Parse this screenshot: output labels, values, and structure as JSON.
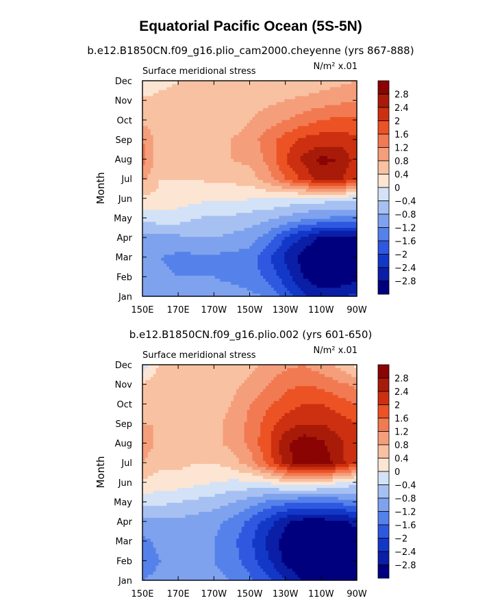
{
  "figure": {
    "title": "Equatorial Pacific Ocean (5S-5N)"
  },
  "colormap": {
    "levels": [
      -2.8,
      -2.4,
      -2,
      -1.6,
      -1.2,
      -0.8,
      -0.4,
      0,
      0.4,
      0.8,
      1.2,
      1.6,
      2,
      2.4,
      2.8
    ],
    "colors": [
      "#00007f",
      "#0a1ea6",
      "#1338c8",
      "#2f58e0",
      "#5582ea",
      "#7fa2ee",
      "#a7c0f2",
      "#d3e2f7",
      "#fde5d3",
      "#f8c1a1",
      "#f59e7b",
      "#f17a52",
      "#ec5324",
      "#cc3010",
      "#a81b08",
      "#8a0404"
    ]
  },
  "chart_data": [
    {
      "type": "heatmap",
      "subtitle": "b.e12.B1850CN.f09_g16.plio_cam2000.cheyenne (yrs 867-888)",
      "variable": "Surface meridional stress",
      "units": "N/m² x.01",
      "xlabel": "",
      "ylabel": "Month",
      "x_ticks": [
        "150E",
        "170E",
        "170W",
        "150W",
        "130W",
        "110W",
        "90W"
      ],
      "y_ticks": [
        "Jan",
        "Feb",
        "Mar",
        "Apr",
        "May",
        "Jun",
        "Jul",
        "Aug",
        "Sep",
        "Oct",
        "Nov",
        "Dec"
      ],
      "x": [
        150,
        160,
        170,
        180,
        190,
        200,
        210,
        220,
        230,
        240,
        250,
        260,
        270
      ],
      "y": [
        "Jan",
        "Feb",
        "Mar",
        "Apr",
        "May",
        "Jun",
        "Jul",
        "Aug",
        "Sep",
        "Oct",
        "Nov",
        "Dec"
      ],
      "z": [
        [
          -0.8,
          -0.9,
          -1.0,
          -1.0,
          -1.0,
          -1.0,
          -1.1,
          -1.2,
          -1.8,
          -2.3,
          -2.6,
          -2.5,
          -2.2
        ],
        [
          -1.0,
          -1.1,
          -1.2,
          -1.2,
          -1.2,
          -1.3,
          -1.4,
          -1.7,
          -2.2,
          -2.8,
          -3.1,
          -3.1,
          -3.0
        ],
        [
          -1.1,
          -1.2,
          -1.3,
          -1.3,
          -1.3,
          -1.3,
          -1.4,
          -1.9,
          -2.5,
          -3.0,
          -3.2,
          -3.2,
          -3.0
        ],
        [
          -0.9,
          -0.9,
          -0.9,
          -0.8,
          -0.8,
          -0.9,
          -1.0,
          -1.4,
          -2.0,
          -2.5,
          -2.9,
          -3.0,
          -2.9
        ],
        [
          -0.3,
          -0.2,
          -0.2,
          -0.4,
          -0.5,
          -0.5,
          -0.6,
          -0.7,
          -0.9,
          -1.1,
          -1.2,
          -1.3,
          -1.3
        ],
        [
          0.3,
          0.3,
          0.2,
          0.1,
          0.1,
          0.1,
          0.0,
          0.0,
          -0.1,
          -0.2,
          -0.2,
          -0.3,
          -0.3
        ],
        [
          0.9,
          0.4,
          0.4,
          0.4,
          0.5,
          0.5,
          0.6,
          1.0,
          1.6,
          2.1,
          2.6,
          2.5,
          2.0
        ],
        [
          1.4,
          0.5,
          0.5,
          0.6,
          0.7,
          0.8,
          0.9,
          1.3,
          2.0,
          2.5,
          2.9,
          2.8,
          2.2
        ],
        [
          1.2,
          0.6,
          0.5,
          0.6,
          0.7,
          0.8,
          1.0,
          1.4,
          1.8,
          2.1,
          2.2,
          2.2,
          2.1
        ],
        [
          0.7,
          0.5,
          0.5,
          0.4,
          0.4,
          0.6,
          0.8,
          1.0,
          1.2,
          1.4,
          1.6,
          1.7,
          1.7
        ],
        [
          0.5,
          0.5,
          0.5,
          0.4,
          0.4,
          0.5,
          0.6,
          0.7,
          0.8,
          0.9,
          1.0,
          1.1,
          1.2
        ],
        [
          0.0,
          0.3,
          0.4,
          0.4,
          0.4,
          0.5,
          0.5,
          0.5,
          0.5,
          0.5,
          0.6,
          0.7,
          0.8
        ]
      ]
    },
    {
      "type": "heatmap",
      "subtitle": "b.e12.B1850CN.f09_g16.plio.002 (yrs 601-650)",
      "variable": "Surface meridional stress",
      "units": "N/m² x.01",
      "xlabel": "",
      "ylabel": "Month",
      "x_ticks": [
        "150E",
        "170E",
        "170W",
        "150W",
        "130W",
        "110W",
        "90W"
      ],
      "y_ticks": [
        "Jan",
        "Feb",
        "Mar",
        "Apr",
        "May",
        "Jun",
        "Jul",
        "Aug",
        "Sep",
        "Oct",
        "Nov",
        "Dec"
      ],
      "x": [
        150,
        160,
        170,
        180,
        190,
        200,
        210,
        220,
        230,
        240,
        250,
        260,
        270
      ],
      "y": [
        "Jan",
        "Feb",
        "Mar",
        "Apr",
        "May",
        "Jun",
        "Jul",
        "Aug",
        "Sep",
        "Oct",
        "Nov",
        "Dec"
      ],
      "z": [
        [
          -1.2,
          -1.1,
          -1.0,
          -1.0,
          -1.1,
          -1.2,
          -1.5,
          -1.9,
          -2.4,
          -2.8,
          -2.9,
          -2.9,
          -2.8
        ],
        [
          -1.4,
          -1.2,
          -1.1,
          -1.1,
          -1.2,
          -1.4,
          -1.8,
          -2.3,
          -2.9,
          -3.2,
          -3.3,
          -3.2,
          -3.0
        ],
        [
          -1.3,
          -1.1,
          -1.0,
          -1.0,
          -1.2,
          -1.5,
          -1.9,
          -2.5,
          -3.0,
          -3.3,
          -3.3,
          -3.2,
          -3.0
        ],
        [
          -1.0,
          -0.9,
          -0.9,
          -1.0,
          -1.1,
          -1.3,
          -1.7,
          -2.2,
          -2.7,
          -3.0,
          -3.0,
          -2.9,
          -2.7
        ],
        [
          -0.2,
          -0.3,
          -0.4,
          -0.5,
          -0.6,
          -0.8,
          -1.0,
          -1.3,
          -1.5,
          -1.6,
          -1.6,
          -1.5,
          -1.3
        ],
        [
          0.3,
          0.2,
          0.2,
          0.1,
          0.0,
          -0.1,
          -0.1,
          0.0,
          0.2,
          0.3,
          0.2,
          0.0,
          -0.3
        ],
        [
          0.8,
          0.5,
          0.5,
          0.4,
          0.4,
          0.6,
          1.0,
          1.7,
          2.6,
          3.1,
          3.1,
          2.6,
          2.0
        ],
        [
          1.0,
          0.7,
          0.6,
          0.6,
          0.7,
          0.9,
          1.3,
          1.9,
          2.7,
          3.1,
          2.9,
          2.5,
          2.1
        ],
        [
          0.8,
          0.8,
          0.7,
          0.6,
          0.7,
          0.9,
          1.3,
          1.8,
          2.2,
          2.4,
          2.4,
          2.2,
          2.0
        ],
        [
          0.6,
          0.6,
          0.7,
          0.6,
          0.7,
          0.8,
          1.2,
          1.5,
          1.8,
          2.0,
          2.0,
          1.8,
          1.6
        ],
        [
          0.5,
          0.6,
          0.6,
          0.6,
          0.6,
          0.7,
          0.9,
          1.2,
          1.5,
          1.6,
          1.5,
          1.3,
          1.1
        ],
        [
          -0.3,
          0.5,
          0.6,
          0.6,
          0.6,
          0.6,
          0.7,
          0.9,
          1.1,
          1.2,
          1.0,
          0.7,
          0.3
        ]
      ]
    }
  ]
}
